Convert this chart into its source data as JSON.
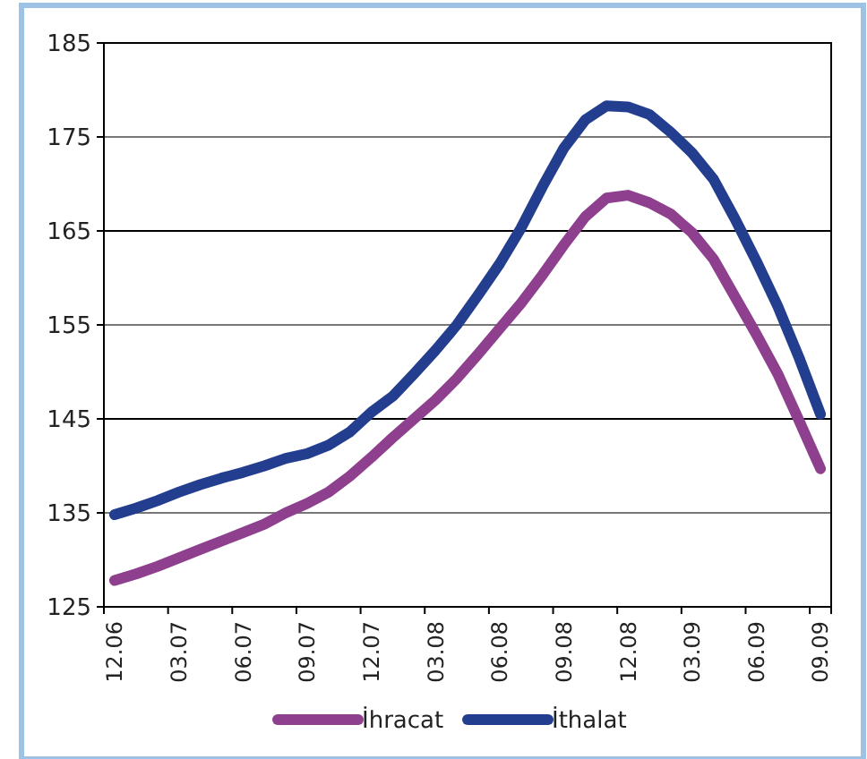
{
  "chart_data": {
    "type": "line",
    "categories": [
      "12.06",
      null,
      null,
      "03.07",
      null,
      null,
      "06.07",
      null,
      null,
      "09.07",
      null,
      null,
      "12.07",
      null,
      null,
      "03.08",
      null,
      null,
      "06.08",
      null,
      null,
      "09.08",
      null,
      null,
      "12.08",
      null,
      null,
      "03.09",
      null,
      null,
      "06.09",
      null,
      null,
      "09.09"
    ],
    "series": [
      {
        "name": "İhracat",
        "color": "#8e3f8e",
        "values": [
          127.8,
          128.5,
          129.3,
          130.2,
          131.1,
          132.0,
          132.9,
          133.8,
          135.0,
          136.0,
          137.2,
          138.9,
          140.9,
          143.0,
          145.0,
          147.0,
          149.3,
          151.9,
          154.6,
          157.3,
          160.3,
          163.5,
          166.5,
          168.5,
          168.8,
          168.0,
          166.8,
          164.8,
          162.0,
          158.0,
          154.0,
          149.8,
          144.8,
          139.7
        ]
      },
      {
        "name": "İthalat",
        "color": "#233e8f",
        "values": [
          134.8,
          135.5,
          136.3,
          137.2,
          138.0,
          138.7,
          139.3,
          140.0,
          140.8,
          141.3,
          142.2,
          143.6,
          145.7,
          147.4,
          149.8,
          152.3,
          155.0,
          158.2,
          161.5,
          165.3,
          169.7,
          173.8,
          176.8,
          178.3,
          178.2,
          177.4,
          175.5,
          173.3,
          170.5,
          166.3,
          161.8,
          157.0,
          151.5,
          145.5
        ]
      }
    ],
    "ylim": [
      125,
      185
    ],
    "yticks": [
      125,
      135,
      145,
      155,
      165,
      175,
      185
    ],
    "grid": "y",
    "legend": "bottom",
    "marker": "none",
    "line_style": "solid"
  }
}
